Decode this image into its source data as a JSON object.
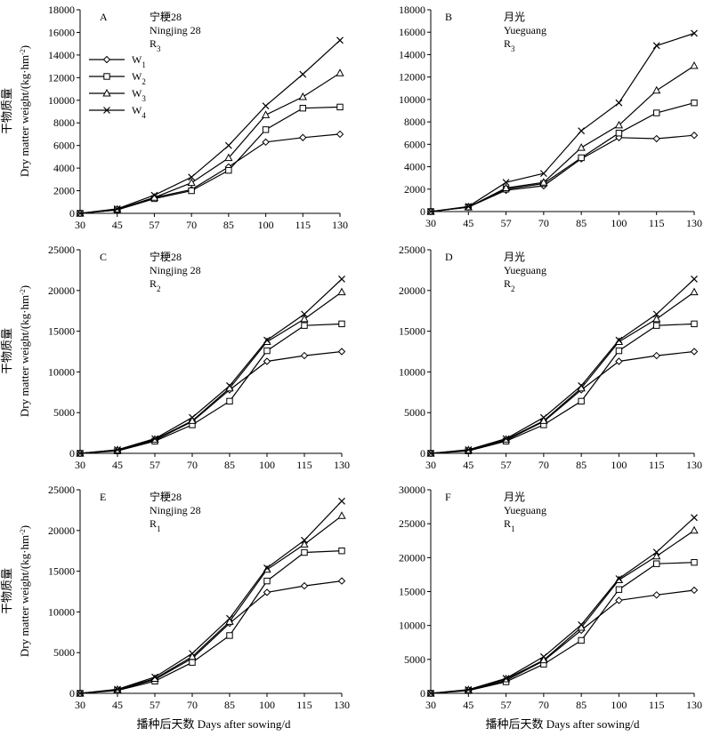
{
  "figure": {
    "xlabel": "播种后天数 Days after sowing/d",
    "ylabel_cn": "干物质量",
    "ylabel_en": "Dry matter weight/(kg·hm",
    "ylabel_en_sup": "-2",
    "ylabel_en_end": ")"
  },
  "legend": [
    {
      "base": "W",
      "sub": "1",
      "marker": "diamond"
    },
    {
      "base": "W",
      "sub": "2",
      "marker": "square"
    },
    {
      "base": "W",
      "sub": "3",
      "marker": "triangle"
    },
    {
      "base": "W",
      "sub": "4",
      "marker": "cross"
    }
  ],
  "chart_data": [
    {
      "type": "line",
      "letter": "A",
      "cultivar_cn": "宁粳28",
      "cultivar_en": "Ningjing 28",
      "treatment_base": "R",
      "treatment_sub": "3",
      "x": [
        30,
        45,
        57,
        70,
        85,
        100,
        115,
        130
      ],
      "x_ticks": [
        30,
        45,
        57,
        70,
        85,
        100,
        115,
        130
      ],
      "ylim": [
        0,
        18000
      ],
      "y_ticks": [
        0,
        2000,
        4000,
        6000,
        8000,
        10000,
        12000,
        14000,
        16000,
        18000
      ],
      "series": [
        {
          "values": [
            0,
            300,
            1400,
            2100,
            4100,
            6300,
            6700,
            7000
          ],
          "marker": "diamond"
        },
        {
          "values": [
            0,
            300,
            1300,
            2000,
            3800,
            7400,
            9300,
            9400
          ],
          "marker": "square"
        },
        {
          "values": [
            0,
            350,
            1400,
            2700,
            4900,
            8700,
            10300,
            12400
          ],
          "marker": "triangle"
        },
        {
          "values": [
            0,
            400,
            1600,
            3200,
            6000,
            9500,
            12300,
            15300
          ],
          "marker": "cross"
        }
      ]
    },
    {
      "type": "line",
      "letter": "B",
      "cultivar_cn": "月光",
      "cultivar_en": "Yueguang",
      "treatment_base": "R",
      "treatment_sub": "3",
      "x": [
        30,
        45,
        57,
        70,
        85,
        100,
        115,
        130
      ],
      "x_ticks": [
        30,
        45,
        57,
        70,
        85,
        100,
        115,
        130
      ],
      "ylim": [
        0,
        18000
      ],
      "y_ticks": [
        0,
        2000,
        4000,
        6000,
        8000,
        10000,
        12000,
        14000,
        16000,
        18000
      ],
      "series": [
        {
          "values": [
            0,
            400,
            1900,
            2300,
            4700,
            6600,
            6500,
            6800
          ],
          "marker": "diamond"
        },
        {
          "values": [
            0,
            400,
            2000,
            2500,
            4800,
            7000,
            8800,
            9700
          ],
          "marker": "square"
        },
        {
          "values": [
            0,
            400,
            2100,
            2600,
            5700,
            7700,
            10800,
            13000
          ],
          "marker": "triangle"
        },
        {
          "values": [
            0,
            450,
            2600,
            3400,
            7200,
            9700,
            14800,
            15900
          ],
          "marker": "cross"
        }
      ]
    },
    {
      "type": "line",
      "letter": "C",
      "cultivar_cn": "宁粳28",
      "cultivar_en": "Ningjing 28",
      "treatment_base": "R",
      "treatment_sub": "2",
      "x": [
        30,
        45,
        57,
        70,
        85,
        100,
        115,
        130
      ],
      "x_ticks": [
        30,
        45,
        57,
        70,
        85,
        100,
        115,
        130
      ],
      "ylim": [
        0,
        25000
      ],
      "y_ticks": [
        0,
        5000,
        10000,
        15000,
        20000,
        25000
      ],
      "series": [
        {
          "values": [
            0,
            350,
            1600,
            3900,
            7800,
            11300,
            12000,
            12500
          ],
          "marker": "diamond"
        },
        {
          "values": [
            0,
            300,
            1500,
            3500,
            6400,
            12600,
            15700,
            15900
          ],
          "marker": "square"
        },
        {
          "values": [
            0,
            400,
            1700,
            4000,
            8000,
            13700,
            16500,
            19800
          ],
          "marker": "triangle"
        },
        {
          "values": [
            0,
            450,
            1800,
            4400,
            8300,
            13900,
            17100,
            21400
          ],
          "marker": "cross"
        }
      ]
    },
    {
      "type": "line",
      "letter": "D",
      "cultivar_cn": "月光",
      "cultivar_en": "Yueguang",
      "treatment_base": "R",
      "treatment_sub": "2",
      "x": [
        30,
        45,
        57,
        70,
        85,
        100,
        115,
        130
      ],
      "x_ticks": [
        30,
        45,
        57,
        70,
        85,
        100,
        115,
        130
      ],
      "ylim": [
        0,
        25000
      ],
      "y_ticks": [
        0,
        5000,
        10000,
        15000,
        20000,
        25000
      ],
      "series": [
        {
          "values": [
            0,
            350,
            1600,
            3900,
            7800,
            11300,
            12000,
            12500
          ],
          "marker": "diamond"
        },
        {
          "values": [
            0,
            300,
            1500,
            3500,
            6400,
            12600,
            15700,
            15900
          ],
          "marker": "square"
        },
        {
          "values": [
            0,
            400,
            1700,
            4000,
            8000,
            13700,
            16500,
            19800
          ],
          "marker": "triangle"
        },
        {
          "values": [
            0,
            450,
            1800,
            4400,
            8300,
            13900,
            17100,
            21400
          ],
          "marker": "cross"
        }
      ]
    },
    {
      "type": "line",
      "letter": "E",
      "cultivar_cn": "宁粳28",
      "cultivar_en": "Ningjing 28",
      "treatment_base": "R",
      "treatment_sub": "1",
      "x": [
        30,
        45,
        57,
        70,
        85,
        100,
        115,
        130
      ],
      "x_ticks": [
        30,
        45,
        57,
        70,
        85,
        100,
        115,
        130
      ],
      "ylim": [
        0,
        25000
      ],
      "y_ticks": [
        0,
        5000,
        10000,
        15000,
        20000,
        25000
      ],
      "series": [
        {
          "values": [
            0,
            400,
            1700,
            4300,
            8600,
            12400,
            13200,
            13800
          ],
          "marker": "diamond"
        },
        {
          "values": [
            0,
            350,
            1500,
            3800,
            7100,
            13800,
            17300,
            17500
          ],
          "marker": "square"
        },
        {
          "values": [
            0,
            450,
            1800,
            4500,
            8800,
            15200,
            18300,
            21800
          ],
          "marker": "triangle"
        },
        {
          "values": [
            0,
            500,
            2000,
            4900,
            9200,
            15400,
            18800,
            23600
          ],
          "marker": "cross"
        }
      ]
    },
    {
      "type": "line",
      "letter": "F",
      "cultivar_cn": "月光",
      "cultivar_en": "Yueguang",
      "treatment_base": "R",
      "treatment_sub": "1",
      "x": [
        30,
        45,
        57,
        70,
        85,
        100,
        115,
        130
      ],
      "x_ticks": [
        30,
        45,
        57,
        70,
        85,
        100,
        115,
        130
      ],
      "ylim": [
        0,
        30000
      ],
      "y_ticks": [
        0,
        5000,
        10000,
        15000,
        20000,
        25000,
        30000
      ],
      "series": [
        {
          "values": [
            0,
            450,
            1900,
            4800,
            9300,
            13700,
            14500,
            15200
          ],
          "marker": "diamond"
        },
        {
          "values": [
            0,
            400,
            1700,
            4300,
            7800,
            15300,
            19100,
            19300
          ],
          "marker": "square"
        },
        {
          "values": [
            0,
            500,
            2100,
            4900,
            9700,
            16700,
            20200,
            24000
          ],
          "marker": "triangle"
        },
        {
          "values": [
            0,
            550,
            2200,
            5400,
            10100,
            16900,
            20800,
            25900
          ],
          "marker": "cross"
        }
      ]
    }
  ]
}
